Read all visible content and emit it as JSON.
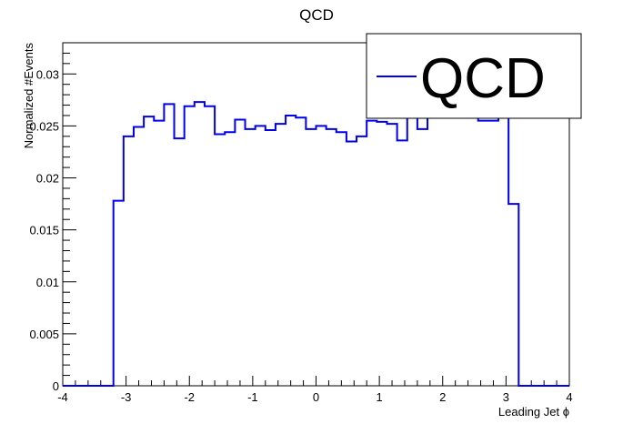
{
  "chart_data": {
    "type": "histogram",
    "title": "QCD",
    "xlabel": "Leading Jet ϕ",
    "ylabel": "Normalized #Events",
    "xlim": [
      -4,
      4
    ],
    "ylim": [
      0,
      0.033
    ],
    "xticks": [
      -4,
      -3,
      -2,
      -1,
      0,
      1,
      2,
      3,
      4
    ],
    "xtick_labels": [
      "-4",
      "-3",
      "-2",
      "-1",
      "0",
      "1",
      "2",
      "3",
      "4"
    ],
    "yticks": [
      0,
      0.005,
      0.01,
      0.015,
      0.02,
      0.025,
      0.03
    ],
    "ytick_labels": [
      "0",
      "0.005",
      "0.01",
      "0.015",
      "0.02",
      "0.025",
      "0.03"
    ],
    "bin_width": 0.16,
    "grid": false,
    "legend_position": "top-right",
    "series": [
      {
        "name": "QCD",
        "color": "#0000ee",
        "bins": [
          {
            "x0": -4.0,
            "x1": -3.2,
            "y": 0
          },
          {
            "x0": -3.2,
            "x1": -3.04,
            "y": 0.0178
          },
          {
            "x0": -3.04,
            "x1": -2.88,
            "y": 0.024
          },
          {
            "x0": -2.88,
            "x1": -2.72,
            "y": 0.0249
          },
          {
            "x0": -2.72,
            "x1": -2.56,
            "y": 0.0259
          },
          {
            "x0": -2.56,
            "x1": -2.4,
            "y": 0.0255
          },
          {
            "x0": -2.4,
            "x1": -2.24,
            "y": 0.0271
          },
          {
            "x0": -2.24,
            "x1": -2.08,
            "y": 0.0238
          },
          {
            "x0": -2.08,
            "x1": -1.92,
            "y": 0.0269
          },
          {
            "x0": -1.92,
            "x1": -1.76,
            "y": 0.0273
          },
          {
            "x0": -1.76,
            "x1": -1.6,
            "y": 0.0269
          },
          {
            "x0": -1.6,
            "x1": -1.44,
            "y": 0.0242
          },
          {
            "x0": -1.44,
            "x1": -1.28,
            "y": 0.0244
          },
          {
            "x0": -1.28,
            "x1": -1.12,
            "y": 0.0256
          },
          {
            "x0": -1.12,
            "x1": -0.96,
            "y": 0.0247
          },
          {
            "x0": -0.96,
            "x1": -0.8,
            "y": 0.025
          },
          {
            "x0": -0.8,
            "x1": -0.64,
            "y": 0.0246
          },
          {
            "x0": -0.64,
            "x1": -0.48,
            "y": 0.0252
          },
          {
            "x0": -0.48,
            "x1": -0.32,
            "y": 0.026
          },
          {
            "x0": -0.32,
            "x1": -0.16,
            "y": 0.0258
          },
          {
            "x0": -0.16,
            "x1": 0.0,
            "y": 0.0247
          },
          {
            "x0": 0.0,
            "x1": 0.16,
            "y": 0.025
          },
          {
            "x0": 0.16,
            "x1": 0.32,
            "y": 0.0247
          },
          {
            "x0": 0.32,
            "x1": 0.48,
            "y": 0.0244
          },
          {
            "x0": 0.48,
            "x1": 0.64,
            "y": 0.0235
          },
          {
            "x0": 0.64,
            "x1": 0.8,
            "y": 0.024
          },
          {
            "x0": 0.8,
            "x1": 0.96,
            "y": 0.0255
          },
          {
            "x0": 0.96,
            "x1": 1.12,
            "y": 0.0254
          },
          {
            "x0": 1.12,
            "x1": 1.28,
            "y": 0.0252
          },
          {
            "x0": 1.28,
            "x1": 1.44,
            "y": 0.0236
          },
          {
            "x0": 1.44,
            "x1": 1.6,
            "y": 0.026
          },
          {
            "x0": 1.6,
            "x1": 1.76,
            "y": 0.0247
          },
          {
            "x0": 1.76,
            "x1": 1.92,
            "y": 0.0262
          },
          {
            "x0": 1.92,
            "x1": 2.08,
            "y": 0.0264
          },
          {
            "x0": 2.08,
            "x1": 2.24,
            "y": 0.0263
          },
          {
            "x0": 2.24,
            "x1": 2.4,
            "y": 0.0262
          },
          {
            "x0": 2.4,
            "x1": 2.56,
            "y": 0.0262
          },
          {
            "x0": 2.56,
            "x1": 2.72,
            "y": 0.0255
          },
          {
            "x0": 2.72,
            "x1": 2.88,
            "y": 0.0255
          },
          {
            "x0": 2.88,
            "x1": 3.04,
            "y": 0.0262
          },
          {
            "x0": 3.04,
            "x1": 3.2,
            "y": 0.0175
          },
          {
            "x0": 3.2,
            "x1": 4.0,
            "y": 0
          }
        ]
      }
    ]
  }
}
